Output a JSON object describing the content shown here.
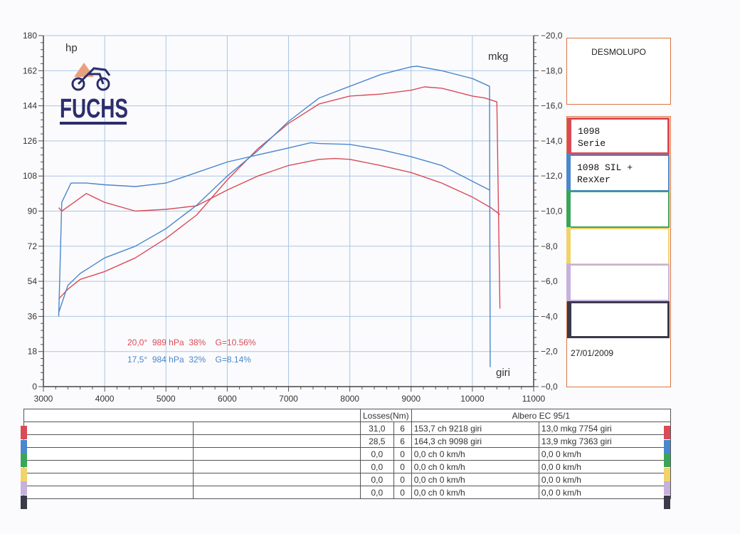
{
  "chart_data": {
    "type": "line",
    "title": "",
    "xlabel": "giri",
    "ylabel_left": "hp",
    "ylabel_right": "mkg",
    "xlim": [
      3000,
      11000
    ],
    "ylim_left": [
      0,
      180
    ],
    "ylim_right": [
      0,
      20
    ],
    "x_ticks": [
      "3000",
      "4000",
      "5000",
      "6000",
      "7000",
      "8000",
      "9000",
      "10000",
      "11000"
    ],
    "y_left_ticks": [
      "0",
      "18",
      "36",
      "54",
      "72",
      "90",
      "108",
      "126",
      "144",
      "162",
      "180"
    ],
    "y_right_ticks": [
      "0,0",
      "2,0",
      "4,0",
      "6,0",
      "8,0",
      "10,0",
      "12,0",
      "14,0",
      "16,0",
      "18,0",
      "20,0"
    ],
    "grid": true,
    "series": [
      {
        "name": "1098 Serie",
        "quantity": "power",
        "axis": "left",
        "color": "#d94b57",
        "x": [
          3250,
          3400,
          3600,
          3800,
          4000,
          4500,
          5000,
          5500,
          6000,
          6500,
          7000,
          7500,
          8000,
          8500,
          9000,
          9218,
          9500,
          10000,
          10200,
          10400,
          10450
        ],
        "y": [
          45,
          50,
          55,
          57,
          59,
          66,
          76,
          88,
          106,
          122,
          135,
          145,
          149,
          150,
          152,
          153.7,
          153,
          149,
          148,
          146,
          40
        ]
      },
      {
        "name": "1098 Serie",
        "quantity": "torque",
        "axis": "right",
        "color": "#d94b57",
        "x": [
          3250,
          3300,
          3500,
          3700,
          4000,
          4500,
          5000,
          5500,
          6000,
          6500,
          7000,
          7500,
          7754,
          8000,
          8500,
          9000,
          9500,
          10000,
          10300,
          10450
        ],
        "y": [
          10.2,
          10.0,
          10.5,
          11.0,
          10.5,
          10.0,
          10.1,
          10.3,
          11.2,
          12.0,
          12.6,
          12.95,
          13.0,
          12.95,
          12.6,
          12.2,
          11.6,
          10.8,
          10.2,
          9.8
        ]
      },
      {
        "name": "1098 SIL + RexXer",
        "quantity": "power",
        "axis": "left",
        "color": "#4a87cc",
        "x": [
          3250,
          3400,
          3600,
          3800,
          4000,
          4500,
          5000,
          5500,
          6000,
          6500,
          7000,
          7500,
          8000,
          8500,
          9000,
          9098,
          9500,
          10000,
          10280,
          10290
        ],
        "y": [
          38,
          52,
          58,
          62,
          66,
          72,
          81,
          93,
          108,
          121,
          136,
          148,
          154,
          160,
          164,
          164.3,
          162,
          158,
          154,
          10
        ]
      },
      {
        "name": "1098 SIL + RexXer",
        "quantity": "torque",
        "axis": "right",
        "color": "#4a87cc",
        "x": [
          3250,
          3300,
          3450,
          3700,
          4000,
          4500,
          5000,
          5500,
          6000,
          6500,
          7000,
          7363,
          7500,
          8000,
          8500,
          9000,
          9500,
          10000,
          10280
        ],
        "y": [
          4.0,
          10.5,
          11.6,
          11.6,
          11.5,
          11.4,
          11.6,
          12.2,
          12.8,
          13.2,
          13.6,
          13.9,
          13.85,
          13.8,
          13.5,
          13.1,
          12.6,
          11.7,
          11.2
        ]
      }
    ],
    "conditions": [
      {
        "text": "20,0°  989 hPa  38%    G=10.56%",
        "color": "#d94b57"
      },
      {
        "text": "17,5°  984 hPa  32%    G=8.14%",
        "color": "#4a87cc"
      }
    ]
  },
  "logo": {
    "text": "FUCHS"
  },
  "header_box": {
    "title": "DESMOLUPO"
  },
  "legend": [
    {
      "color": "#d94b57",
      "text": "1098\nSerie"
    },
    {
      "color": "#4a87cc",
      "text": "1098 SIL +\nRexXer"
    },
    {
      "color": "#3aa559",
      "text": ""
    },
    {
      "color": "#f2d36b",
      "text": ""
    },
    {
      "color": "#c5b1dc",
      "text": ""
    },
    {
      "color": "#3a3a4a",
      "text": ""
    }
  ],
  "date": "27/01/2009",
  "table": {
    "losses_header": "Losses(Nm)",
    "shaft_header": "Albero EC 95/1",
    "rows": [
      {
        "color": "#d94b57",
        "loss": "31,0",
        "n": "6",
        "power": "153,7 ch 9218 giri",
        "torque": "13,0 mkg 7754 giri"
      },
      {
        "color": "#4a87cc",
        "loss": "28,5",
        "n": "6",
        "power": "164,3 ch 9098 giri",
        "torque": "13,9 mkg 7363 giri"
      },
      {
        "color": "#3aa559",
        "loss": "0,0",
        "n": "0",
        "power": "0,0 ch 0 km/h",
        "torque": "0,0  0 km/h"
      },
      {
        "color": "#f2d36b",
        "loss": "0,0",
        "n": "0",
        "power": "0,0 ch 0 km/h",
        "torque": "0,0  0 km/h"
      },
      {
        "color": "#c5b1dc",
        "loss": "0,0",
        "n": "0",
        "power": "0,0 ch 0 km/h",
        "torque": "0,0  0 km/h"
      },
      {
        "color": "#3a3a4a",
        "loss": "0,0",
        "n": "0",
        "power": "0,0 ch 0 km/h",
        "torque": "0,0  0 km/h"
      }
    ]
  }
}
